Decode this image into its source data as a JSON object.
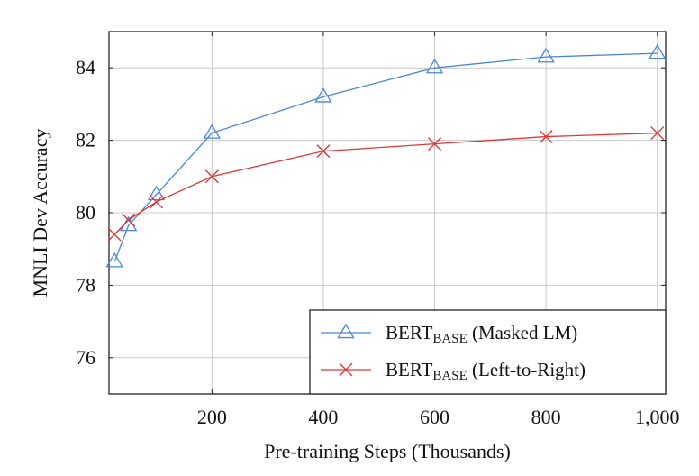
{
  "chart_data": {
    "type": "line",
    "xlabel": "Pre-training Steps (Thousands)",
    "ylabel": "MNLI Dev Accuracy",
    "xlim": [
      15,
      1015
    ],
    "ylim": [
      75,
      85
    ],
    "xticks": [
      200,
      400,
      600,
      800,
      1000
    ],
    "xtick_labels": [
      "200",
      "400",
      "600",
      "800",
      "1,000"
    ],
    "yticks": [
      76,
      78,
      80,
      82,
      84
    ],
    "ytick_labels": [
      "76",
      "78",
      "80",
      "82",
      "84"
    ],
    "grid": true,
    "legend_position": "bottom-right",
    "series": [
      {
        "name": "BERT",
        "name_sub": "BASE",
        "name_suffix": " (Masked LM)",
        "marker": "triangle",
        "color": "#4a86d8",
        "x": [
          25,
          50,
          100,
          200,
          400,
          600,
          800,
          1000
        ],
        "y": [
          78.65,
          79.65,
          80.5,
          82.2,
          83.2,
          84.0,
          84.3,
          84.4
        ]
      },
      {
        "name": "BERT",
        "name_sub": "BASE",
        "name_suffix": " (Left-to-Right)",
        "marker": "x",
        "color": "#d93a3a",
        "x": [
          25,
          50,
          100,
          200,
          400,
          600,
          800,
          1000
        ],
        "y": [
          79.4,
          79.8,
          80.3,
          81.0,
          81.7,
          81.9,
          82.1,
          82.2
        ]
      }
    ]
  }
}
